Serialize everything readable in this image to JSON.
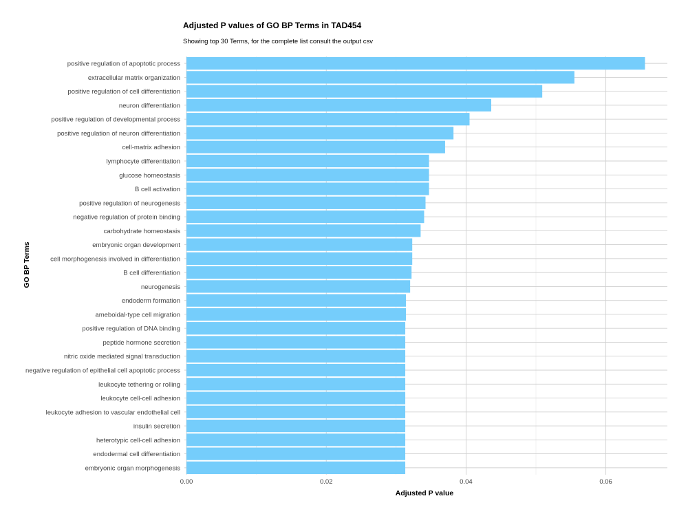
{
  "chart_data": {
    "type": "bar",
    "orientation": "horizontal",
    "title": "Adjusted P values of GO BP Terms in TAD454",
    "subtitle": "Showing top 30 Terms, for the complete list consult the output csv",
    "xlabel": "Adjusted P value",
    "ylabel": "GO BP Terms",
    "xlim": [
      -0.0003,
      0.0688
    ],
    "xticks": [
      "0.00",
      "0.02",
      "0.04",
      "0.06"
    ],
    "grid": true,
    "bar_color": "#75cdfb",
    "categories": [
      "positive regulation of apoptotic process",
      "extracellular matrix organization",
      "positive regulation of cell differentiation",
      "neuron differentiation",
      "positive regulation of developmental process",
      "positive regulation of neuron differentiation",
      "cell-matrix adhesion",
      "lymphocyte differentiation",
      "glucose homeostasis",
      "B cell activation",
      "positive regulation of neurogenesis",
      "negative regulation of protein binding",
      "carbohydrate homeostasis",
      "embryonic organ development",
      "cell morphogenesis involved in differentiation",
      "B cell differentiation",
      "neurogenesis",
      "endoderm formation",
      "ameboidal-type cell migration",
      "positive regulation of DNA binding",
      "peptide hormone secretion",
      "nitric oxide mediated signal transduction",
      "negative regulation of epithelial cell apoptotic process",
      "leukocyte tethering or rolling",
      "leukocyte cell-cell adhesion",
      "leukocyte adhesion to vascular endothelial cell",
      "insulin secretion",
      "heterotypic cell-cell adhesion",
      "endodermal cell differentiation",
      "embryonic organ morphogenesis"
    ],
    "values": [
      0.0656,
      0.0555,
      0.0509,
      0.0436,
      0.0405,
      0.0382,
      0.037,
      0.0347,
      0.0347,
      0.0347,
      0.0342,
      0.034,
      0.0335,
      0.0323,
      0.0323,
      0.0322,
      0.032,
      0.0314,
      0.0314,
      0.0313,
      0.0313,
      0.0313,
      0.0313,
      0.0313,
      0.0313,
      0.0313,
      0.0313,
      0.0313,
      0.0313,
      0.0313
    ]
  }
}
